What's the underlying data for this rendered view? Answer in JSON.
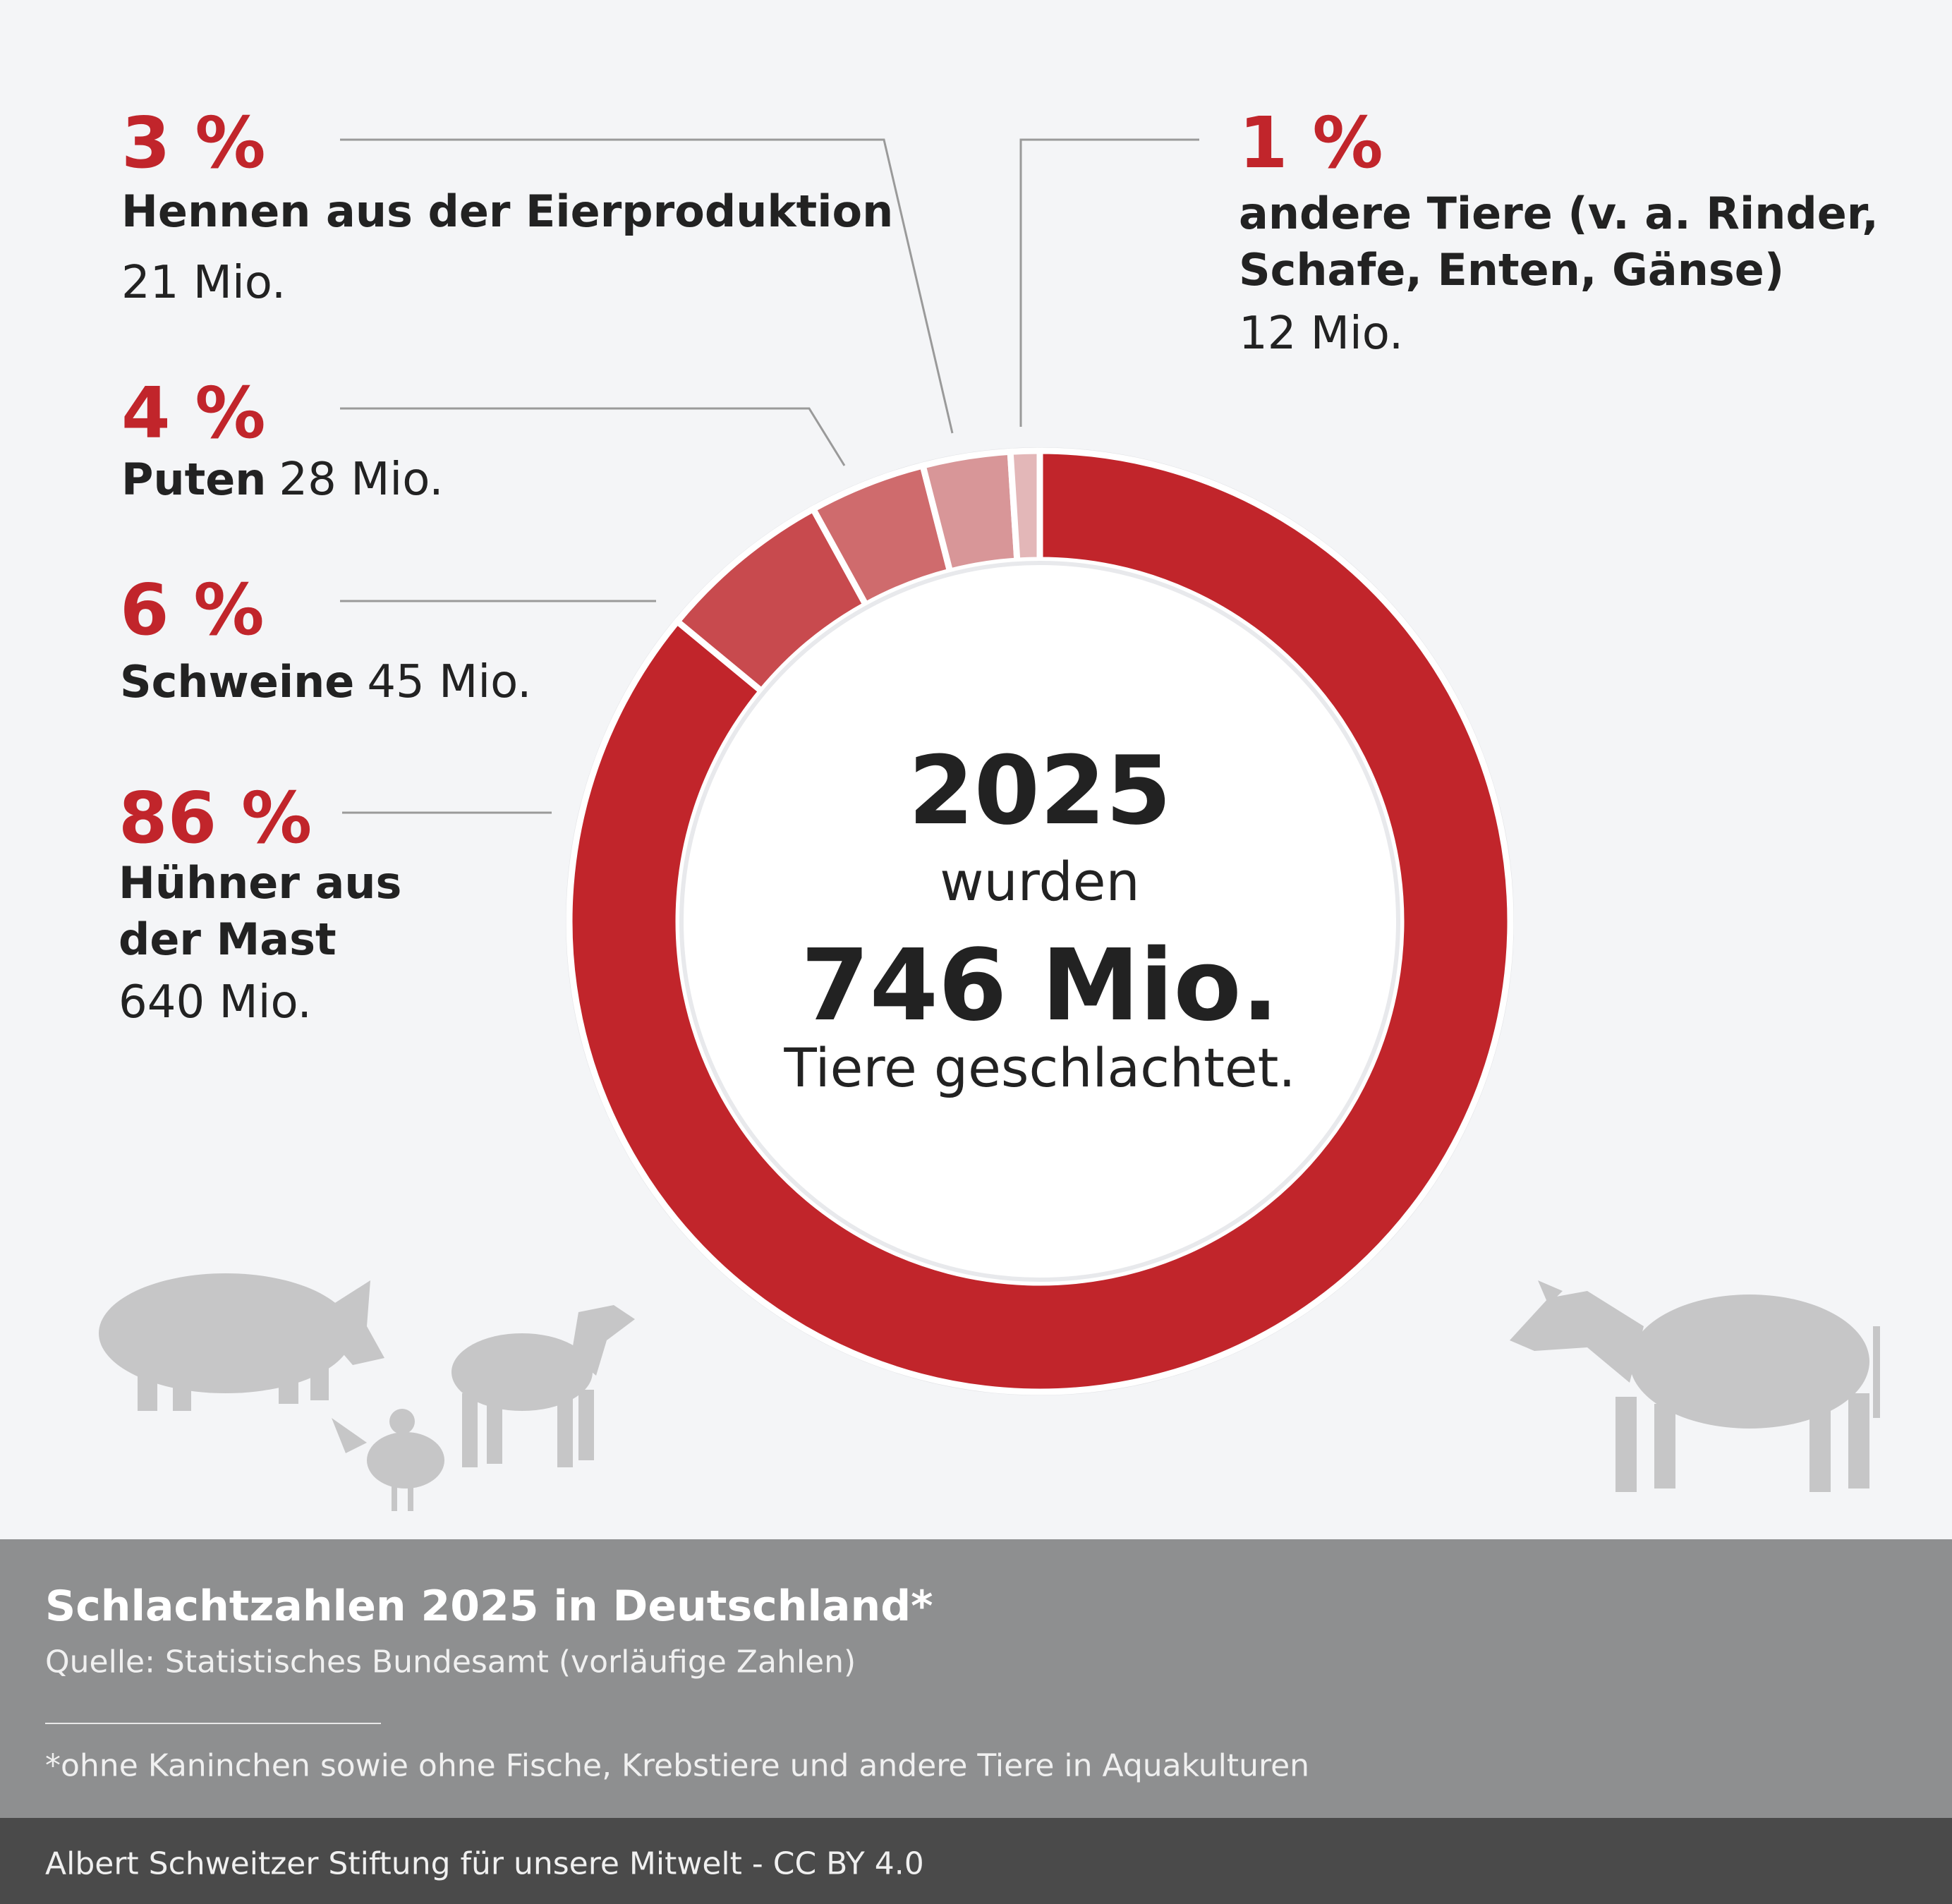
{
  "chart_data": {
    "type": "donut",
    "categories": [
      "Hühner aus\nder Mast",
      "Schweine",
      "Puten",
      "Hennen aus der Eierproduktion",
      "andere Tiere (v. a. Rinder,\nSchafe, Enten, Gänse)"
    ],
    "values": [
      86,
      6,
      4,
      3,
      1
    ],
    "value_labels": [
      "86 %",
      "6 %",
      "4 %",
      "3 %",
      "1 %"
    ],
    "counts": [
      640,
      45,
      28,
      21,
      12
    ],
    "count_labels": [
      "640 Mio.",
      "45 Mio.",
      "28 Mio.",
      "21 Mio.",
      "12 Mio."
    ],
    "colors": [
      "#c1252b",
      "#c84a4e",
      "#cf6b6d",
      "#d89698",
      "#e3b7b8"
    ],
    "center_text": {
      "year": "2025",
      "pre": "wurden",
      "total": "746 Mio.",
      "post": "Tiere geschlachtet."
    },
    "title": "Schlachtzahlen 2025 in Deutschland*",
    "subtitle": "Quelle: Statistisches Bundesamt (vorläufige Zahlen)",
    "note": "*ohne Kaninchen sowie ohne Fische, Krebstiere und andere Tiere in Aquakulturen",
    "credit": "Albert Schweitzer Stiftung für unsere Mitwelt - CC BY 4.0"
  }
}
